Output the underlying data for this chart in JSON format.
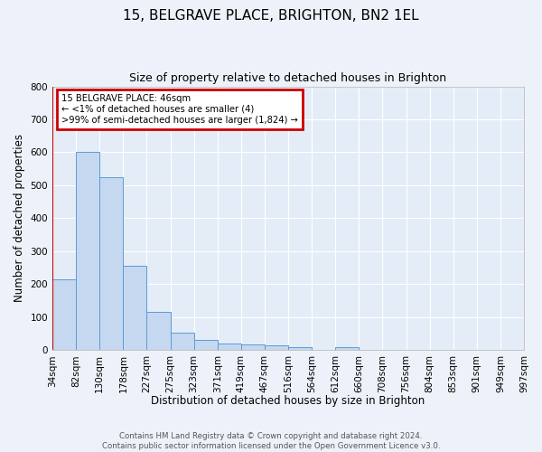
{
  "title": "15, BELGRAVE PLACE, BRIGHTON, BN2 1EL",
  "subtitle": "Size of property relative to detached houses in Brighton",
  "xlabel": "Distribution of detached houses by size in Brighton",
  "ylabel": "Number of detached properties",
  "footer_line1": "Contains HM Land Registry data © Crown copyright and database right 2024.",
  "footer_line2": "Contains public sector information licensed under the Open Government Licence v3.0.",
  "bar_values": [
    215,
    600,
    525,
    257,
    117,
    52,
    30,
    20,
    17,
    13,
    10,
    0,
    8,
    0,
    0,
    0,
    0,
    0,
    0,
    0
  ],
  "bar_labels": [
    "34sqm",
    "82sqm",
    "130sqm",
    "178sqm",
    "227sqm",
    "275sqm",
    "323sqm",
    "371sqm",
    "419sqm",
    "467sqm",
    "516sqm",
    "564sqm",
    "612sqm",
    "660sqm",
    "708sqm",
    "756sqm",
    "804sqm",
    "853sqm",
    "901sqm",
    "949sqm",
    "997sqm"
  ],
  "bar_color": "#c5d8f0",
  "bar_edge_color": "#5b9bd5",
  "annotation_line1": "15 BELGRAVE PLACE: 46sqm",
  "annotation_line2": "← <1% of detached houses are smaller (4)",
  "annotation_line3": ">99% of semi-detached houses are larger (1,824) →",
  "annotation_box_color": "#cc0000",
  "ylim": [
    0,
    800
  ],
  "yticks": [
    0,
    100,
    200,
    300,
    400,
    500,
    600,
    700,
    800
  ],
  "bg_color": "#edf2fa",
  "plot_bg_color": "#e4ecf7",
  "grid_color": "#ffffff",
  "title_fontsize": 11,
  "subtitle_fontsize": 9,
  "tick_fontsize": 7.5,
  "axis_label_fontsize": 8.5
}
